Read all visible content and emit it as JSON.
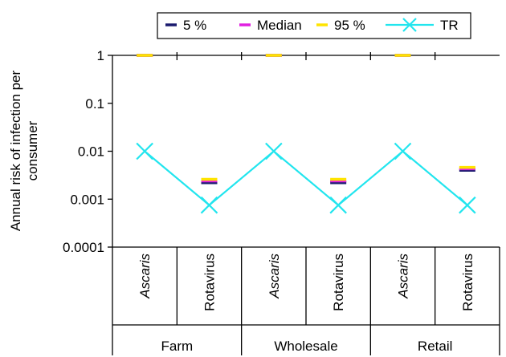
{
  "chart_data": {
    "type": "line",
    "ylabel": "Annual risk of infection per consumer",
    "y_scale": "log",
    "ylim": [
      0.0001,
      1
    ],
    "y_ticks": [
      "1",
      "0.1",
      "0.01",
      "0.001",
      "0.0001"
    ],
    "y_tick_values": [
      1,
      0.1,
      0.01,
      0.001,
      0.0001
    ],
    "grid": false,
    "legend_position": "top",
    "categories": [
      {
        "label": "Ascaris",
        "italic": true,
        "group": "Farm"
      },
      {
        "label": "Rotavirus",
        "italic": false,
        "group": "Farm"
      },
      {
        "label": "Ascaris",
        "italic": true,
        "group": "Wholesale"
      },
      {
        "label": "Rotavirus",
        "italic": false,
        "group": "Wholesale"
      },
      {
        "label": "Ascaris",
        "italic": true,
        "group": "Retail"
      },
      {
        "label": "Rotavirus",
        "italic": false,
        "group": "Retail"
      }
    ],
    "groups": [
      "Farm",
      "Wholesale",
      "Retail"
    ],
    "series": [
      {
        "name": "5 %",
        "style": "dash",
        "color": "#1a1a6e",
        "values": [
          1,
          0.0022,
          1,
          0.0022,
          1,
          0.004
        ]
      },
      {
        "name": "Median",
        "style": "dash",
        "color": "#e020e0",
        "values": [
          1,
          0.0024,
          1,
          0.0024,
          1,
          0.0043
        ]
      },
      {
        "name": "95 %",
        "style": "dash",
        "color": "#ffe400",
        "values": [
          1,
          0.0026,
          1,
          0.0026,
          1,
          0.0046
        ]
      },
      {
        "name": "TR",
        "style": "line-x",
        "color": "#22e5ee",
        "values": [
          0.01,
          0.00075,
          0.01,
          0.00075,
          0.01,
          0.00075
        ]
      }
    ]
  }
}
